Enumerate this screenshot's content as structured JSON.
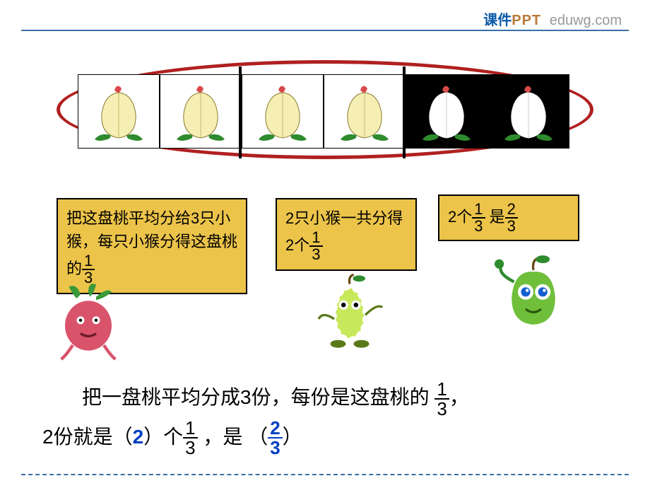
{
  "header": {
    "brand_a": "课件",
    "brand_b": "PPT",
    "site": "eduwg.com",
    "line_color": "#3a6ea5"
  },
  "peach_visual": {
    "count": 6,
    "groups": 3,
    "per_group": 2,
    "cells": [
      {
        "bg": "white",
        "peach_fill": "#f5efb4",
        "outline": "#000000"
      },
      {
        "bg": "white",
        "peach_fill": "#f5efb4",
        "outline": "#000000"
      },
      {
        "bg": "white",
        "peach_fill": "#f5efb4",
        "outline": "#000000"
      },
      {
        "bg": "white",
        "peach_fill": "#f5efb4",
        "outline": "#000000"
      },
      {
        "bg": "black",
        "peach_fill": "#ffffff",
        "outline": "#ffffff"
      },
      {
        "bg": "black",
        "peach_fill": "#ffffff",
        "outline": "#ffffff"
      }
    ],
    "tip_color": "#d84a4a",
    "leaf_color": "#2e8b2e",
    "oval_border": "#b02020",
    "divider_after_indices": [
      1,
      3
    ]
  },
  "boxes": {
    "box1": {
      "bg": "#ecc44a",
      "text_pre": "把这盘桃平均分给3只小猴，每只小猴分得这盘桃的",
      "frac": {
        "num": "1",
        "den": "3"
      }
    },
    "box2": {
      "bg": "#ecc44a",
      "text_pre": "2只小猴一共分得2个",
      "frac": {
        "num": "1",
        "den": "3"
      }
    },
    "box3": {
      "bg": "#ecc44a",
      "text_a": "2个",
      "frac_a": {
        "num": "1",
        "den": "3"
      },
      "text_b": " 是",
      "frac_b": {
        "num": "2",
        "den": "3"
      }
    }
  },
  "characters": {
    "radish": {
      "body": "#d9536b",
      "leaf": "#3a9a3a"
    },
    "pear": {
      "body": "#c7e85a",
      "leaf": "#2e8b2e",
      "outline": "#ffffff"
    },
    "apple": {
      "body": "#6fbf3a",
      "leaf": "#2e8b2e",
      "eye": "#1560d0"
    }
  },
  "bottom": {
    "line1_a": "把一盘桃平均分成3份，每份是这盘桃的 ",
    "frac1": {
      "num": "1",
      "den": "3"
    },
    "line1_b": "，",
    "line2_a": "2份就是（",
    "answer2": "2",
    "line2_b": "）个",
    "frac2": {
      "num": "1",
      "den": "3"
    },
    "line2_c": " ，是 （",
    "frac3": {
      "num": "2",
      "den": "3"
    },
    "line2_d": "）",
    "answer_color": "#0040c0"
  }
}
